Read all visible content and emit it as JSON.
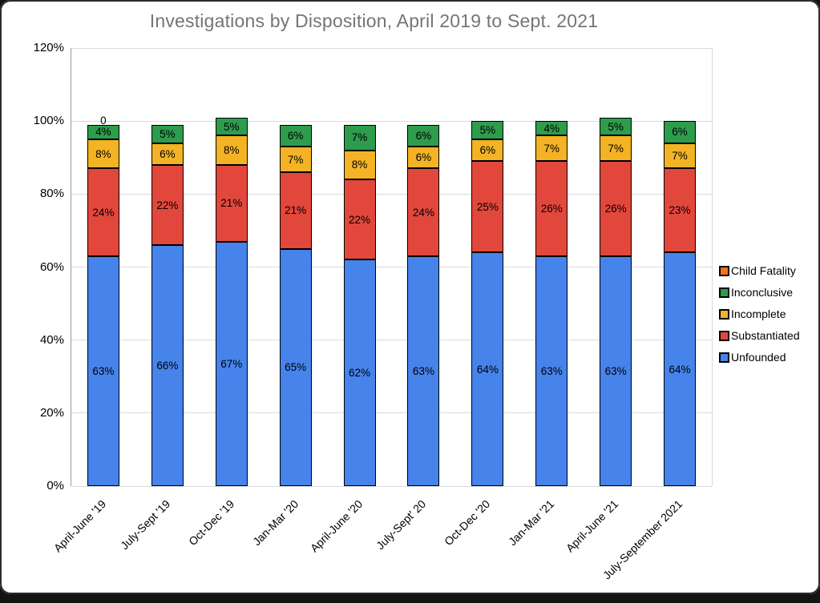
{
  "title": "Investigations by Disposition, April 2019 to Sept. 2021",
  "chart_data": {
    "type": "bar",
    "subtype": "stacked",
    "title": "Investigations by Disposition, April 2019 to Sept. 2021",
    "categories": [
      "April-June '19",
      "July-Sept '19",
      "Oct-Dec '19",
      "Jan-Mar '20",
      "April-June '20",
      "July-Sept' 20",
      "Oct-Dec '20",
      "Jan-Mar '21",
      "April-June '21",
      "July-September 2021"
    ],
    "series": [
      {
        "name": "Unfounded",
        "color": "#4683ea",
        "values": [
          63,
          66,
          67,
          65,
          62,
          63,
          64,
          63,
          63,
          64
        ]
      },
      {
        "name": "Substantiated",
        "color": "#e2473c",
        "values": [
          24,
          22,
          21,
          21,
          22,
          24,
          25,
          26,
          26,
          23
        ]
      },
      {
        "name": "Incomplete",
        "color": "#f3b324",
        "values": [
          8,
          6,
          8,
          7,
          8,
          6,
          6,
          7,
          7,
          7
        ]
      },
      {
        "name": "Inconclusive",
        "color": "#2e9c4d",
        "values": [
          4,
          5,
          5,
          6,
          7,
          6,
          5,
          4,
          5,
          6
        ]
      },
      {
        "name": "Child Fatality",
        "color": "#f4701f",
        "values": [
          0,
          null,
          null,
          null,
          null,
          null,
          null,
          null,
          null,
          null
        ]
      }
    ],
    "value_suffix": "%",
    "y_ticks": [
      "0%",
      "20%",
      "40%",
      "60%",
      "80%",
      "100%",
      "120%"
    ],
    "ylim": [
      0,
      120
    ],
    "grid": true,
    "legend_position": "right",
    "legend_order": [
      "Child Fatality",
      "Inconclusive",
      "Incomplete",
      "Substantiated",
      "Unfounded"
    ],
    "colors": {
      "title_text": "#757575",
      "gridline": "#dadada",
      "axis_line": "#9a9a9a",
      "label_text": "#000000"
    }
  }
}
